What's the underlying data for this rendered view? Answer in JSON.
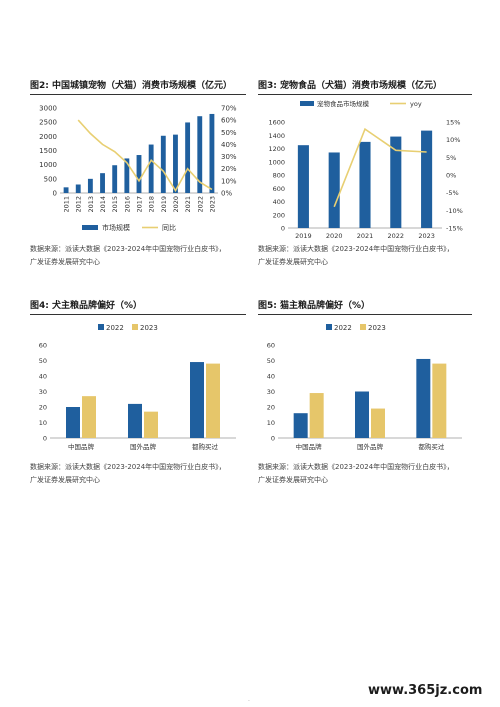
{
  "colors": {
    "bar": "#1f5f9e",
    "bar2023": "#e6c66a",
    "line": "#e8cf72",
    "text": "#333333"
  },
  "figures": [
    {
      "title": "图2: 中国城镇宠物（犬猫）消费市场规模（亿元）",
      "note1": "数据来源：派读大数据《2023-2024年中国宠物行业白皮书》，",
      "note2": "广发证券发展研究中心"
    },
    {
      "title": "图3: 宠物食品（犬猫）消费市场规模（亿元）",
      "note1": "数据来源：派读大数据《2023-2024年中国宠物行业白皮书》，",
      "note2": "广发证券发展研究中心"
    },
    {
      "title": "图4: 犬主粮品牌偏好（%）",
      "note1": "数据来源：派读大数据《2023-2024年中国宠物行业白皮书》，",
      "note2": "广发证券发展研究中心"
    },
    {
      "title": "图5: 猫主粮品牌偏好（%）",
      "note1": "数据来源：派读大数据《2023-2024年中国宠物行业白皮书》，",
      "note2": "广发证券发展研究中心"
    }
  ],
  "watermark": "www.365jz.com",
  "chart_data": [
    {
      "type": "bar",
      "title": "图2: 中国城镇宠物（犬猫）消费市场规模（亿元）",
      "categories": [
        "2011",
        "2012",
        "2013",
        "2014",
        "2015",
        "2016",
        "2017",
        "2018",
        "2019",
        "2020",
        "2021",
        "2022",
        "2023"
      ],
      "series": [
        {
          "name": "市场规模",
          "type": "bar",
          "axis": "left",
          "values": [
            200,
            300,
            500,
            700,
            980,
            1220,
            1340,
            1710,
            2020,
            2060,
            2490,
            2710,
            2790
          ]
        },
        {
          "name": "同比",
          "type": "line",
          "axis": "right",
          "values": [
            null,
            60,
            49,
            40,
            34,
            25,
            10,
            27,
            18,
            2,
            20,
            9,
            3
          ]
        }
      ],
      "ylim": [
        0,
        3000
      ],
      "yticks": [
        0,
        500,
        1000,
        1500,
        2000,
        2500,
        3000
      ],
      "y2lim": [
        0,
        70
      ],
      "y2ticks": [
        "0%",
        "10%",
        "20%",
        "30%",
        "40%",
        "50%",
        "60%",
        "70%"
      ],
      "legend": "bottom"
    },
    {
      "type": "bar",
      "title": "图3: 宠物食品（犬猫）消费市场规模（亿元）",
      "categories": [
        "2019",
        "2020",
        "2021",
        "2022",
        "2023"
      ],
      "series": [
        {
          "name": "宠物食品市场规模",
          "type": "bar",
          "axis": "left",
          "values": [
            1250,
            1140,
            1300,
            1380,
            1470
          ]
        },
        {
          "name": "yoy",
          "type": "line",
          "axis": "right",
          "values": [
            null,
            -9,
            13,
            7,
            6.5
          ]
        }
      ],
      "ylim": [
        0,
        1600
      ],
      "yticks": [
        0,
        200,
        400,
        600,
        800,
        1000,
        1200,
        1400,
        1600
      ],
      "y2lim": [
        -15,
        15
      ],
      "y2ticks": [
        "-15%",
        "-10%",
        "-5%",
        "0%",
        "5%",
        "10%",
        "15%"
      ],
      "legend": "top"
    },
    {
      "type": "bar",
      "title": "图4: 犬主粮品牌偏好（%）",
      "categories": [
        "中国品牌",
        "国外品牌",
        "都购买过"
      ],
      "series": [
        {
          "name": "2022",
          "values": [
            20,
            22,
            49
          ]
        },
        {
          "name": "2023",
          "values": [
            27,
            17,
            48
          ]
        }
      ],
      "ylim": [
        0,
        60
      ],
      "yticks": [
        0,
        10,
        20,
        30,
        40,
        50,
        60
      ],
      "legend": "top"
    },
    {
      "type": "bar",
      "title": "图5: 猫主粮品牌偏好（%）",
      "categories": [
        "中国品牌",
        "国外品牌",
        "都购买过"
      ],
      "series": [
        {
          "name": "2022",
          "values": [
            16,
            30,
            51
          ]
        },
        {
          "name": "2023",
          "values": [
            29,
            19,
            48
          ]
        }
      ],
      "ylim": [
        0,
        60
      ],
      "yticks": [
        0,
        10,
        20,
        30,
        40,
        50,
        60
      ],
      "legend": "top"
    }
  ]
}
